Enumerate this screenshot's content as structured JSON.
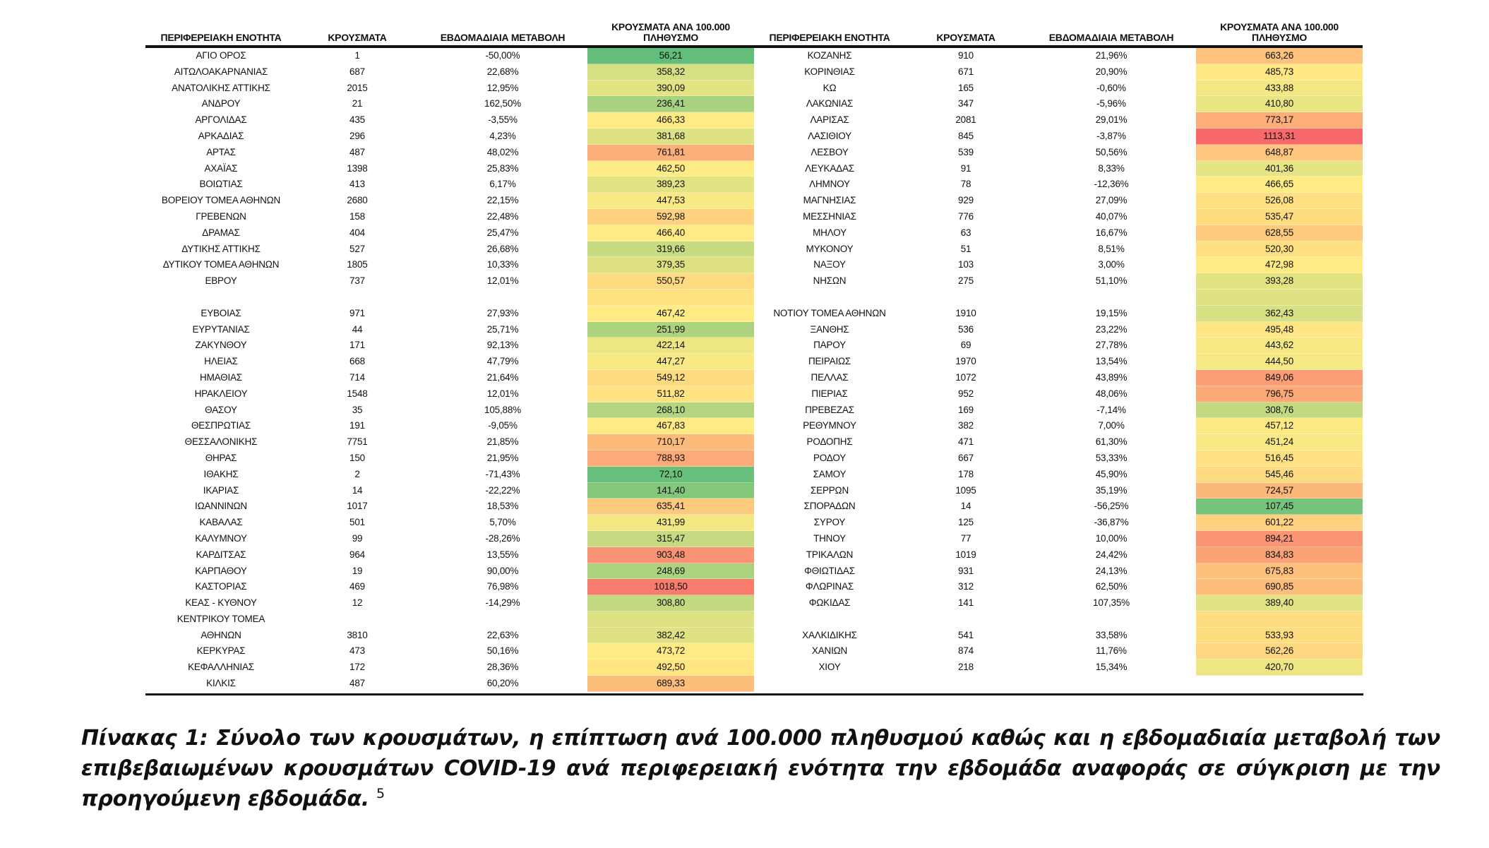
{
  "headers": {
    "name": "ΠΕΡΙΦΕΡΕΙΑΚΗ ΕΝΟΤΗΤΑ",
    "cases": "ΚΡΟΥΣΜΑΤΑ",
    "change": "ΕΒΔΟΜΑΔΙΑΙΑ ΜΕΤΑΒΟΛΗ",
    "rate": "ΚΡΟΥΣΜΑΤΑ ΑΝΑ 100.000 ΠΛΗΘΥΣΜΟ"
  },
  "color_scale": {
    "green": "#63be7b",
    "yellow": "#ffeb84",
    "red": "#f8696b",
    "min": 56.21,
    "mid": 466.33,
    "max": 1113.31
  },
  "left_rows": [
    {
      "name": "ΑΓΙΟ ΟΡΟΣ",
      "cases": "1",
      "change": "-50,00%",
      "rate": "56,21",
      "rate_value": 56.21
    },
    {
      "name": "ΑΙΤΩΛΟΑΚΑΡΝΑΝΙΑΣ",
      "cases": "687",
      "change": "22,68%",
      "rate": "358,32",
      "rate_value": 358.32
    },
    {
      "name": "ΑΝΑΤΟΛΙΚΗΣ ΑΤΤΙΚΗΣ",
      "cases": "2015",
      "change": "12,95%",
      "rate": "390,09",
      "rate_value": 390.09
    },
    {
      "name": "ΑΝΔΡΟΥ",
      "cases": "21",
      "change": "162,50%",
      "rate": "236,41",
      "rate_value": 236.41
    },
    {
      "name": "ΑΡΓΟΛΙΔΑΣ",
      "cases": "435",
      "change": "-3,55%",
      "rate": "466,33",
      "rate_value": 466.33
    },
    {
      "name": "ΑΡΚΑΔΙΑΣ",
      "cases": "296",
      "change": "4,23%",
      "rate": "381,68",
      "rate_value": 381.68
    },
    {
      "name": "ΑΡΤΑΣ",
      "cases": "487",
      "change": "48,02%",
      "rate": "761,81",
      "rate_value": 761.81
    },
    {
      "name": "ΑΧΑΪΑΣ",
      "cases": "1398",
      "change": "25,83%",
      "rate": "462,50",
      "rate_value": 462.5
    },
    {
      "name": "ΒΟΙΩΤΙΑΣ",
      "cases": "413",
      "change": "6,17%",
      "rate": "389,23",
      "rate_value": 389.23
    },
    {
      "name": "ΒΟΡΕΙΟΥ ΤΟΜΕΑ ΑΘΗΝΩΝ",
      "cases": "2680",
      "change": "22,15%",
      "rate": "447,53",
      "rate_value": 447.53
    },
    {
      "name": "ΓΡΕΒΕΝΩΝ",
      "cases": "158",
      "change": "22,48%",
      "rate": "592,98",
      "rate_value": 592.98
    },
    {
      "name": "ΔΡΑΜΑΣ",
      "cases": "404",
      "change": "25,47%",
      "rate": "466,40",
      "rate_value": 466.4
    },
    {
      "name": "ΔΥΤΙΚΗΣ ΑΤΤΙΚΗΣ",
      "cases": "527",
      "change": "26,68%",
      "rate": "319,66",
      "rate_value": 319.66
    },
    {
      "name": "ΔΥΤΙΚΟΥ ΤΟΜΕΑ ΑΘΗΝΩΝ",
      "cases": "1805",
      "change": "10,33%",
      "rate": "379,35",
      "rate_value": 379.35
    },
    {
      "name": "ΕΒΡΟΥ",
      "cases": "737",
      "change": "12,01%",
      "rate": "550,57",
      "rate_value": 550.57
    },
    {
      "name": "",
      "cases": "",
      "change": "",
      "rate": "",
      "rate_value": null,
      "fill_from": "prev_next"
    },
    {
      "name": "ΕΥΒΟΙΑΣ",
      "cases": "971",
      "change": "27,93%",
      "rate": "467,42",
      "rate_value": 467.42
    },
    {
      "name": "ΕΥΡΥΤΑΝΙΑΣ",
      "cases": "44",
      "change": "25,71%",
      "rate": "251,99",
      "rate_value": 251.99
    },
    {
      "name": "ΖΑΚΥΝΘΟΥ",
      "cases": "171",
      "change": "92,13%",
      "rate": "422,14",
      "rate_value": 422.14
    },
    {
      "name": "ΗΛΕΙΑΣ",
      "cases": "668",
      "change": "47,79%",
      "rate": "447,27",
      "rate_value": 447.27
    },
    {
      "name": "ΗΜΑΘΙΑΣ",
      "cases": "714",
      "change": "21,64%",
      "rate": "549,12",
      "rate_value": 549.12
    },
    {
      "name": "ΗΡΑΚΛΕΙΟΥ",
      "cases": "1548",
      "change": "12,01%",
      "rate": "511,82",
      "rate_value": 511.82
    },
    {
      "name": "ΘΑΣΟΥ",
      "cases": "35",
      "change": "105,88%",
      "rate": "268,10",
      "rate_value": 268.1
    },
    {
      "name": "ΘΕΣΠΡΩΤΙΑΣ",
      "cases": "191",
      "change": "-9,05%",
      "rate": "467,83",
      "rate_value": 467.83
    },
    {
      "name": "ΘΕΣΣΑΛΟΝΙΚΗΣ",
      "cases": "7751",
      "change": "21,85%",
      "rate": "710,17",
      "rate_value": 710.17
    },
    {
      "name": "ΘΗΡΑΣ",
      "cases": "150",
      "change": "21,95%",
      "rate": "788,93",
      "rate_value": 788.93
    },
    {
      "name": "ΙΘΑΚΗΣ",
      "cases": "2",
      "change": "-71,43%",
      "rate": "72,10",
      "rate_value": 72.1
    },
    {
      "name": "ΙΚΑΡΙΑΣ",
      "cases": "14",
      "change": "-22,22%",
      "rate": "141,40",
      "rate_value": 141.4
    },
    {
      "name": "ΙΩΑΝΝΙΝΩΝ",
      "cases": "1017",
      "change": "18,53%",
      "rate": "635,41",
      "rate_value": 635.41
    },
    {
      "name": "ΚΑΒΑΛΑΣ",
      "cases": "501",
      "change": "5,70%",
      "rate": "431,99",
      "rate_value": 431.99
    },
    {
      "name": "ΚΑΛΥΜΝΟΥ",
      "cases": "99",
      "change": "-28,26%",
      "rate": "315,47",
      "rate_value": 315.47
    },
    {
      "name": "ΚΑΡΔΙΤΣΑΣ",
      "cases": "964",
      "change": "13,55%",
      "rate": "903,48",
      "rate_value": 903.48
    },
    {
      "name": "ΚΑΡΠΑΘΟΥ",
      "cases": "19",
      "change": "90,00%",
      "rate": "248,69",
      "rate_value": 248.69
    },
    {
      "name": "ΚΑΣΤΟΡΙΑΣ",
      "cases": "469",
      "change": "76,98%",
      "rate": "1018,50",
      "rate_value": 1018.5
    },
    {
      "name": "ΚΕΑΣ - ΚΥΘΝΟΥ",
      "cases": "12",
      "change": "-14,29%",
      "rate": "308,80",
      "rate_value": 308.8
    },
    {
      "name": "ΚΕΝΤΡΙΚΟΥ ΤΟΜΕΑ",
      "cases": "",
      "change": "",
      "rate": "",
      "rate_value": 382.42
    },
    {
      "name": "ΑΘΗΝΩΝ",
      "cases": "3810",
      "change": "22,63%",
      "rate": "382,42",
      "rate_value": 382.42
    },
    {
      "name": "ΚΕΡΚΥΡΑΣ",
      "cases": "473",
      "change": "50,16%",
      "rate": "473,72",
      "rate_value": 473.72
    },
    {
      "name": "ΚΕΦΑΛΛΗΝΙΑΣ",
      "cases": "172",
      "change": "28,36%",
      "rate": "492,50",
      "rate_value": 492.5
    },
    {
      "name": "ΚΙΛΚΙΣ",
      "cases": "487",
      "change": "60,20%",
      "rate": "689,33",
      "rate_value": 689.33
    }
  ],
  "right_rows": [
    {
      "name": "ΚΟΖΑΝΗΣ",
      "cases": "910",
      "change": "21,96%",
      "rate": "663,26",
      "rate_value": 663.26
    },
    {
      "name": "ΚΟΡΙΝΘΙΑΣ",
      "cases": "671",
      "change": "20,90%",
      "rate": "485,73",
      "rate_value": 485.73
    },
    {
      "name": "ΚΩ",
      "cases": "165",
      "change": "-0,60%",
      "rate": "433,88",
      "rate_value": 433.88
    },
    {
      "name": "ΛΑΚΩΝΙΑΣ",
      "cases": "347",
      "change": "-5,96%",
      "rate": "410,80",
      "rate_value": 410.8
    },
    {
      "name": "ΛΑΡΙΣΑΣ",
      "cases": "2081",
      "change": "29,01%",
      "rate": "773,17",
      "rate_value": 773.17
    },
    {
      "name": "ΛΑΣΙΘΙΟΥ",
      "cases": "845",
      "change": "-3,87%",
      "rate": "1113,31",
      "rate_value": 1113.31
    },
    {
      "name": "ΛΕΣΒΟΥ",
      "cases": "539",
      "change": "50,56%",
      "rate": "648,87",
      "rate_value": 648.87
    },
    {
      "name": "ΛΕΥΚΑΔΑΣ",
      "cases": "91",
      "change": "8,33%",
      "rate": "401,36",
      "rate_value": 401.36
    },
    {
      "name": "ΛΗΜΝΟΥ",
      "cases": "78",
      "change": "-12,36%",
      "rate": "466,65",
      "rate_value": 466.65
    },
    {
      "name": "ΜΑΓΝΗΣΙΑΣ",
      "cases": "929",
      "change": "27,09%",
      "rate": "526,08",
      "rate_value": 526.08
    },
    {
      "name": "ΜΕΣΣΗΝΙΑΣ",
      "cases": "776",
      "change": "40,07%",
      "rate": "535,47",
      "rate_value": 535.47
    },
    {
      "name": "ΜΗΛΟΥ",
      "cases": "63",
      "change": "16,67%",
      "rate": "628,55",
      "rate_value": 628.55
    },
    {
      "name": "ΜΥΚΟΝΟΥ",
      "cases": "51",
      "change": "8,51%",
      "rate": "520,30",
      "rate_value": 520.3
    },
    {
      "name": "ΝΑΞΟΥ",
      "cases": "103",
      "change": "3,00%",
      "rate": "472,98",
      "rate_value": 472.98
    },
    {
      "name": "ΝΗΣΩΝ",
      "cases": "275",
      "change": "51,10%",
      "rate": "393,28",
      "rate_value": 393.28
    },
    {
      "name": "",
      "cases": "",
      "change": "",
      "rate": "",
      "rate_value": 380.0
    },
    {
      "name": "ΝΟΤΙΟΥ ΤΟΜΕΑ ΑΘΗΝΩΝ",
      "cases": "1910",
      "change": "19,15%",
      "rate": "362,43",
      "rate_value": 362.43
    },
    {
      "name": "ΞΑΝΘΗΣ",
      "cases": "536",
      "change": "23,22%",
      "rate": "495,48",
      "rate_value": 495.48
    },
    {
      "name": "ΠΑΡΟΥ",
      "cases": "69",
      "change": "27,78%",
      "rate": "443,62",
      "rate_value": 443.62
    },
    {
      "name": "ΠΕΙΡΑΙΩΣ",
      "cases": "1970",
      "change": "13,54%",
      "rate": "444,50",
      "rate_value": 444.5
    },
    {
      "name": "ΠΕΛΛΑΣ",
      "cases": "1072",
      "change": "43,89%",
      "rate": "849,06",
      "rate_value": 849.06
    },
    {
      "name": "ΠΙΕΡΙΑΣ",
      "cases": "952",
      "change": "48,06%",
      "rate": "796,75",
      "rate_value": 796.75
    },
    {
      "name": "ΠΡΕΒΕΖΑΣ",
      "cases": "169",
      "change": "-7,14%",
      "rate": "308,76",
      "rate_value": 308.76
    },
    {
      "name": "ΡΕΘΥΜΝΟΥ",
      "cases": "382",
      "change": "7,00%",
      "rate": "457,12",
      "rate_value": 457.12
    },
    {
      "name": "ΡΟΔΟΠΗΣ",
      "cases": "471",
      "change": "61,30%",
      "rate": "451,24",
      "rate_value": 451.24
    },
    {
      "name": "ΡΟΔΟΥ",
      "cases": "667",
      "change": "53,33%",
      "rate": "516,45",
      "rate_value": 516.45
    },
    {
      "name": "ΣΑΜΟΥ",
      "cases": "178",
      "change": "45,90%",
      "rate": "545,46",
      "rate_value": 545.46
    },
    {
      "name": "ΣΕΡΡΩΝ",
      "cases": "1095",
      "change": "35,19%",
      "rate": "724,57",
      "rate_value": 724.57
    },
    {
      "name": "ΣΠΟΡΑΔΩΝ",
      "cases": "14",
      "change": "-56,25%",
      "rate": "107,45",
      "rate_value": 107.45
    },
    {
      "name": "ΣΥΡΟΥ",
      "cases": "125",
      "change": "-36,87%",
      "rate": "601,22",
      "rate_value": 601.22
    },
    {
      "name": "ΤΗΝΟΥ",
      "cases": "77",
      "change": "10,00%",
      "rate": "894,21",
      "rate_value": 894.21
    },
    {
      "name": "ΤΡΙΚΑΛΩΝ",
      "cases": "1019",
      "change": "24,42%",
      "rate": "834,83",
      "rate_value": 834.83
    },
    {
      "name": "ΦΘΙΩΤΙΔΑΣ",
      "cases": "931",
      "change": "24,13%",
      "rate": "675,83",
      "rate_value": 675.83
    },
    {
      "name": "ΦΛΩΡΙΝΑΣ",
      "cases": "312",
      "change": "62,50%",
      "rate": "690,85",
      "rate_value": 690.85
    },
    {
      "name": "ΦΩΚΙΔΑΣ",
      "cases": "141",
      "change": "107,35%",
      "rate": "389,40",
      "rate_value": 389.4
    },
    {
      "name": "",
      "cases": "",
      "change": "",
      "rate": "",
      "rate_value": 533.93
    },
    {
      "name": "ΧΑΛΚΙΔΙΚΗΣ",
      "cases": "541",
      "change": "33,58%",
      "rate": "533,93",
      "rate_value": 533.93
    },
    {
      "name": "ΧΑΝΙΩΝ",
      "cases": "874",
      "change": "11,76%",
      "rate": "562,26",
      "rate_value": 562.26
    },
    {
      "name": "ΧΙΟΥ",
      "cases": "218",
      "change": "15,34%",
      "rate": "420,70",
      "rate_value": 420.7
    }
  ],
  "caption": {
    "text": "Πίνακας 1: Σύνολο των κρουσμάτων, η επίπτωση ανά 100.000 πληθυσμού καθώς και η εβδομαδιαία μεταβολή των επιβεβαιωμένων κρουσμάτων COVID-19 ανά περιφερειακή ενότητα την εβδομάδα αναφοράς σε σύγκριση με την προηγούμενη εβδομάδα.",
    "footnote": "5"
  }
}
